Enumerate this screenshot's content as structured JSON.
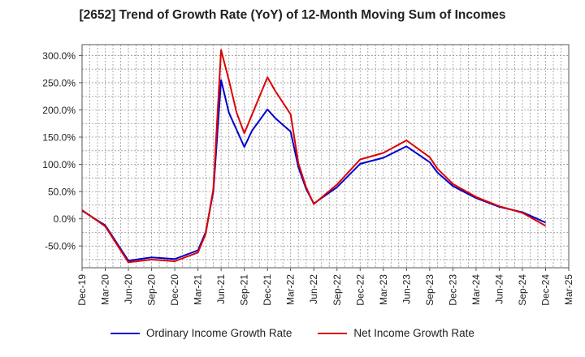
{
  "chart_data": {
    "type": "line",
    "title": "[2652]  Trend of Growth Rate (YoY) of 12-Month Moving Sum of Incomes",
    "xlabel": "",
    "ylabel": "",
    "ylim": [
      -90,
      320
    ],
    "xlim": [
      "2019-12",
      "2025-03"
    ],
    "y_ticks": [
      "300.0%",
      "250.0%",
      "200.0%",
      "150.0%",
      "100.0%",
      "50.0%",
      "0.0%",
      "-50.0%"
    ],
    "x_ticks": [
      "Dec-19",
      "Mar-20",
      "Jun-20",
      "Sep-20",
      "Dec-20",
      "Mar-21",
      "Jun-21",
      "Sep-21",
      "Dec-21",
      "Mar-22",
      "Jun-22",
      "Sep-22",
      "Dec-22",
      "Mar-23",
      "Jun-23",
      "Sep-23",
      "Dec-23",
      "Mar-24",
      "Jun-24",
      "Sep-24",
      "Dec-24",
      "Mar-25"
    ],
    "grid": true,
    "legend_position": "bottom",
    "series": [
      {
        "name": "Ordinary Income Growth Rate",
        "color": "#0000cc",
        "points": [
          [
            "2019-12",
            15
          ],
          [
            "2020-03",
            -12
          ],
          [
            "2020-06",
            -77
          ],
          [
            "2020-09",
            -71
          ],
          [
            "2020-12",
            -74
          ],
          [
            "2021-03",
            -58
          ],
          [
            "2021-04",
            -25
          ],
          [
            "2021-05",
            50
          ],
          [
            "2021-06",
            255
          ],
          [
            "2021-07",
            195
          ],
          [
            "2021-09",
            132
          ],
          [
            "2021-10",
            162
          ],
          [
            "2021-12",
            201
          ],
          [
            "2022-01",
            185
          ],
          [
            "2022-03",
            160
          ],
          [
            "2022-04",
            95
          ],
          [
            "2022-05",
            55
          ],
          [
            "2022-06",
            28
          ],
          [
            "2022-09",
            58
          ],
          [
            "2022-12",
            101
          ],
          [
            "2023-03",
            112
          ],
          [
            "2023-06",
            133
          ],
          [
            "2023-09",
            104
          ],
          [
            "2023-10",
            85
          ],
          [
            "2023-12",
            60
          ],
          [
            "2024-03",
            38
          ],
          [
            "2024-06",
            22
          ],
          [
            "2024-09",
            12
          ],
          [
            "2024-12",
            -7
          ]
        ]
      },
      {
        "name": "Net Income Growth Rate",
        "color": "#dd0000",
        "points": [
          [
            "2019-12",
            16
          ],
          [
            "2020-03",
            -14
          ],
          [
            "2020-06",
            -80
          ],
          [
            "2020-09",
            -75
          ],
          [
            "2020-12",
            -78
          ],
          [
            "2021-03",
            -62
          ],
          [
            "2021-04",
            -28
          ],
          [
            "2021-05",
            55
          ],
          [
            "2021-06",
            310
          ],
          [
            "2021-07",
            255
          ],
          [
            "2021-08",
            195
          ],
          [
            "2021-09",
            157
          ],
          [
            "2021-12",
            260
          ],
          [
            "2022-01",
            235
          ],
          [
            "2022-03",
            192
          ],
          [
            "2022-04",
            102
          ],
          [
            "2022-05",
            58
          ],
          [
            "2022-06",
            27
          ],
          [
            "2022-09",
            63
          ],
          [
            "2022-12",
            109
          ],
          [
            "2023-03",
            121
          ],
          [
            "2023-06",
            144
          ],
          [
            "2023-09",
            113
          ],
          [
            "2023-10",
            92
          ],
          [
            "2023-12",
            64
          ],
          [
            "2024-03",
            40
          ],
          [
            "2024-06",
            23
          ],
          [
            "2024-09",
            11
          ],
          [
            "2024-12",
            -13
          ]
        ]
      }
    ]
  }
}
